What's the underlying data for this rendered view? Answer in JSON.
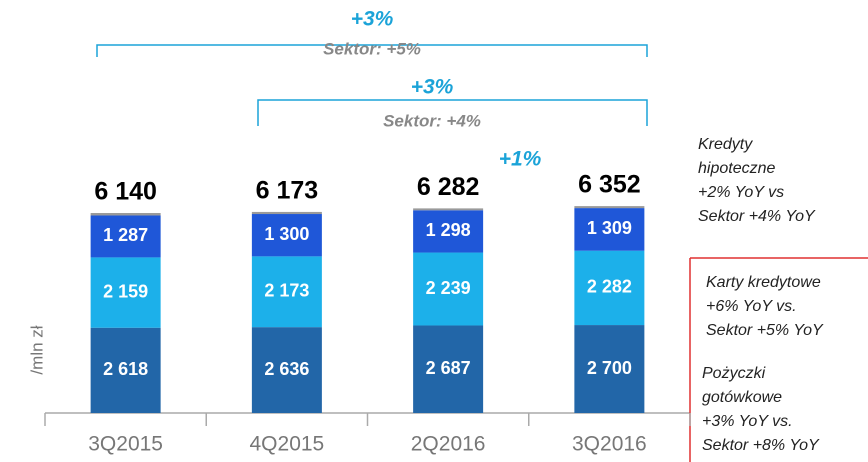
{
  "chart_data": {
    "type": "bar",
    "stacked": true,
    "y_label": "/mln zł",
    "categories": [
      "3Q2015",
      "4Q2015",
      "2Q2016",
      "3Q2016"
    ],
    "ylim": [
      0,
      7000
    ],
    "series": [
      {
        "color": "#2266a8",
        "values": [
          2618,
          2636,
          2687,
          2700
        ],
        "value_labels": [
          "2 618",
          "2 636",
          "2 687",
          "2 700"
        ]
      },
      {
        "color": "#1cb0ea",
        "values": [
          2159,
          2173,
          2239,
          2282
        ],
        "value_labels": [
          "2 159",
          "2 173",
          "2 239",
          "2 282"
        ]
      },
      {
        "color": "#1f57d8",
        "values": [
          1287,
          1300,
          1298,
          1309
        ],
        "value_labels": [
          "1 287",
          "1 300",
          "1 298",
          "1 309"
        ]
      },
      {
        "color": "#9a9a9a",
        "values": [
          76,
          64,
          58,
          61
        ]
      }
    ],
    "totals": [
      6140,
      6173,
      6282,
      6352
    ],
    "total_labels": [
      "6 140",
      "6 173",
      "6 282",
      "6 352"
    ],
    "brackets": [
      {
        "change": "+3%",
        "sector": "Sektor: +5%"
      },
      {
        "change": "+3%",
        "sector": "Sektor: +4%"
      }
    ],
    "growth_label": "+1%",
    "notes": [
      [
        "Kredyty",
        "hipoteczne",
        "+2% YoY vs",
        "Sektor  +4% YoY"
      ],
      [
        "Karty kredytowe",
        "+6% YoY vs.",
        "Sektor +5% YoY"
      ],
      [
        "Pożyczki",
        "gotówkowe",
        "+3% YoY vs.",
        "Sektor +8% YoY"
      ]
    ]
  }
}
